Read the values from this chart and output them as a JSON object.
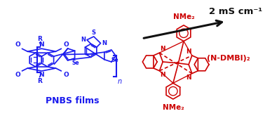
{
  "bg_color": "#ffffff",
  "blue": "#1a1aee",
  "red": "#cc0000",
  "black": "#111111",
  "pnbs_label": "PNBS films",
  "ndmbi_label": "(N-DMBI)₂",
  "conductivity": "2 mS cm⁻¹",
  "nme2": "NMe₂",
  "figsize": [
    3.78,
    1.75
  ],
  "dpi": 100
}
